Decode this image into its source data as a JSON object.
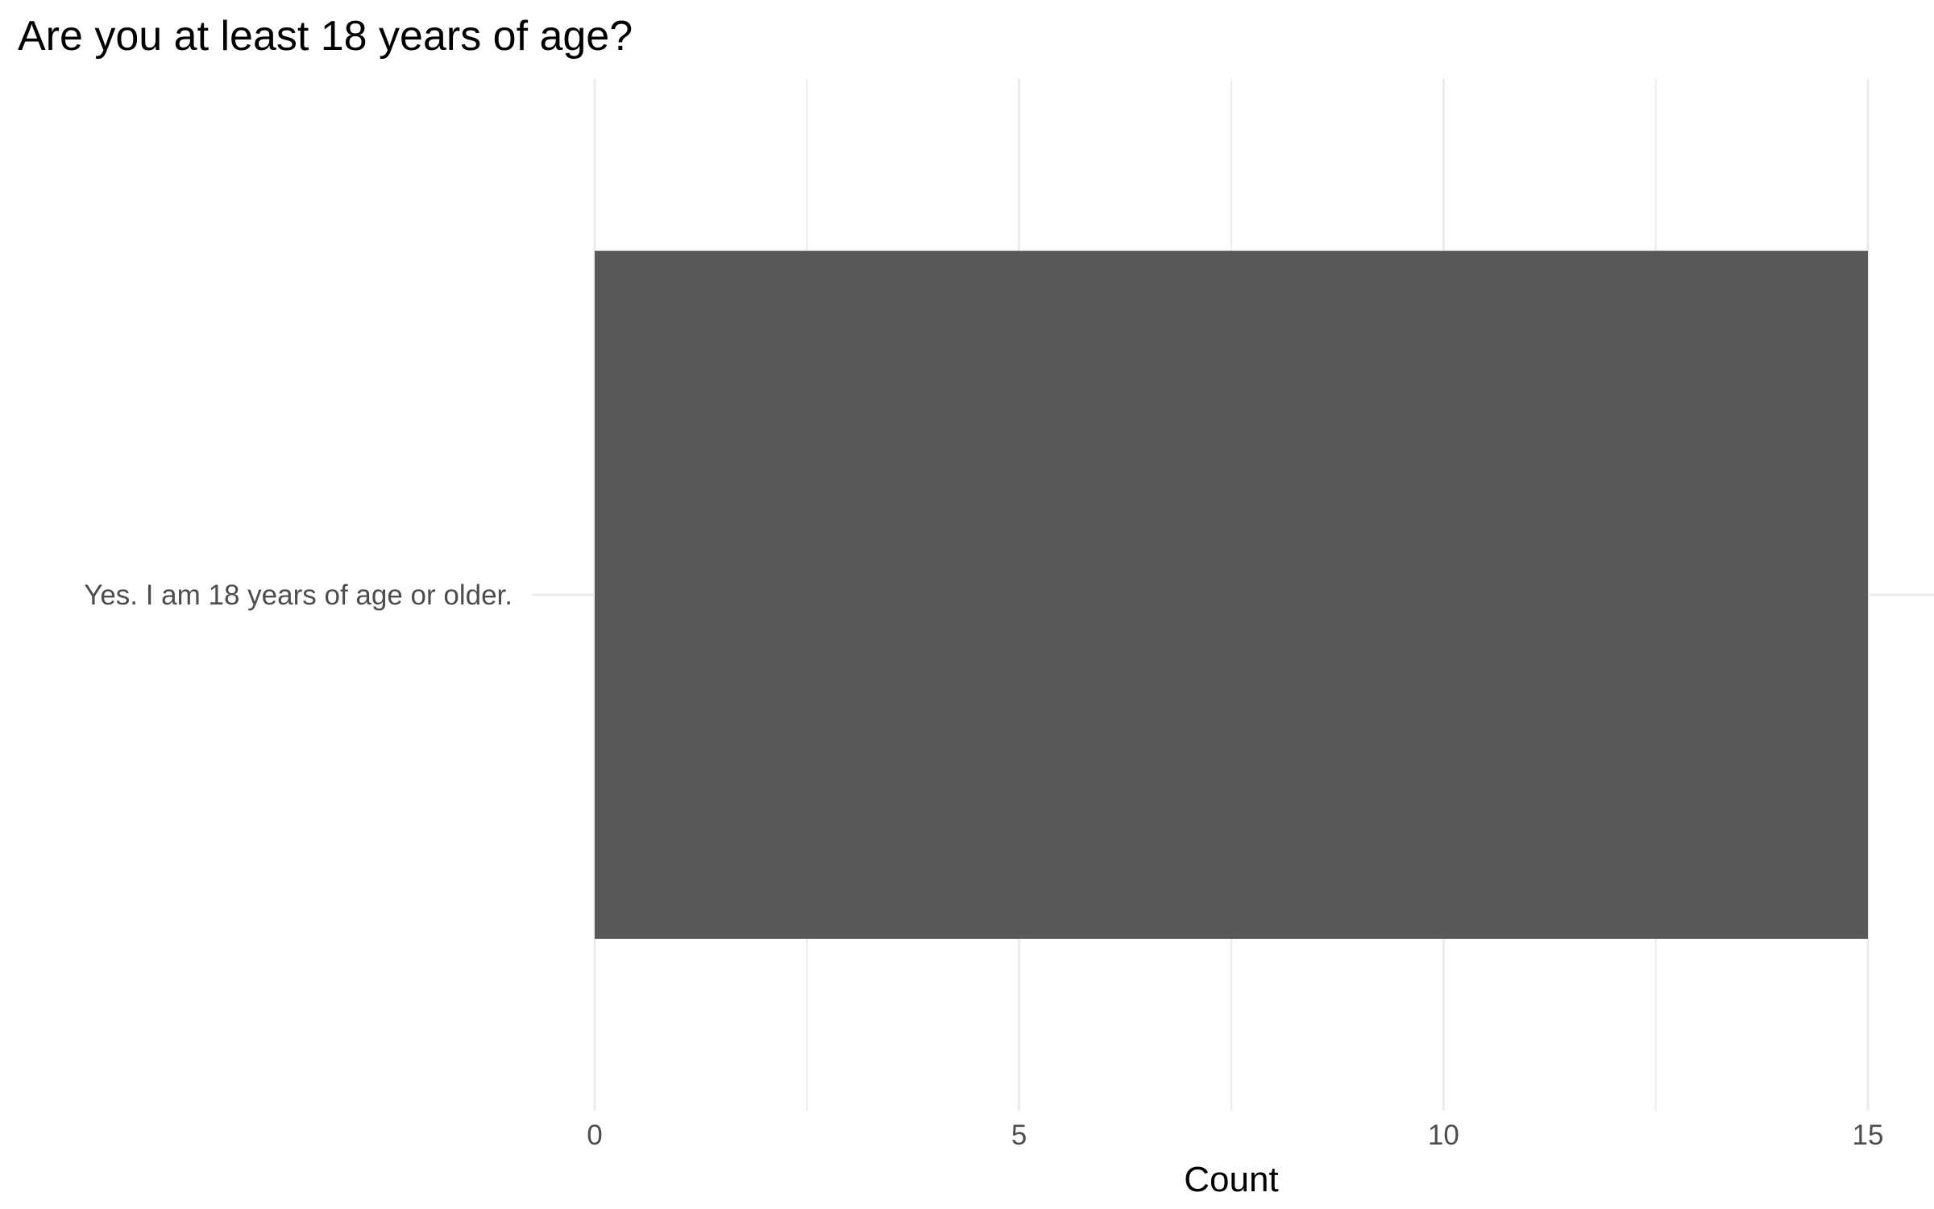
{
  "chart_data": {
    "type": "bar",
    "orientation": "horizontal",
    "title": "Are you at least 18 years of age?",
    "xlabel": "Count",
    "ylabel": "",
    "categories": [
      "Yes. I am 18 years of age or older."
    ],
    "values": [
      15
    ],
    "xlim": [
      0,
      15
    ],
    "x_ticks": [
      0,
      5,
      10,
      15
    ],
    "x_minor_ticks": [
      2.5,
      7.5,
      12.5
    ],
    "grid": true,
    "legend": "none",
    "colors": {
      "bar": "#595959",
      "grid": "#ebebeb",
      "tick_text": "#4d4d4d",
      "title_text": "#000000"
    }
  }
}
